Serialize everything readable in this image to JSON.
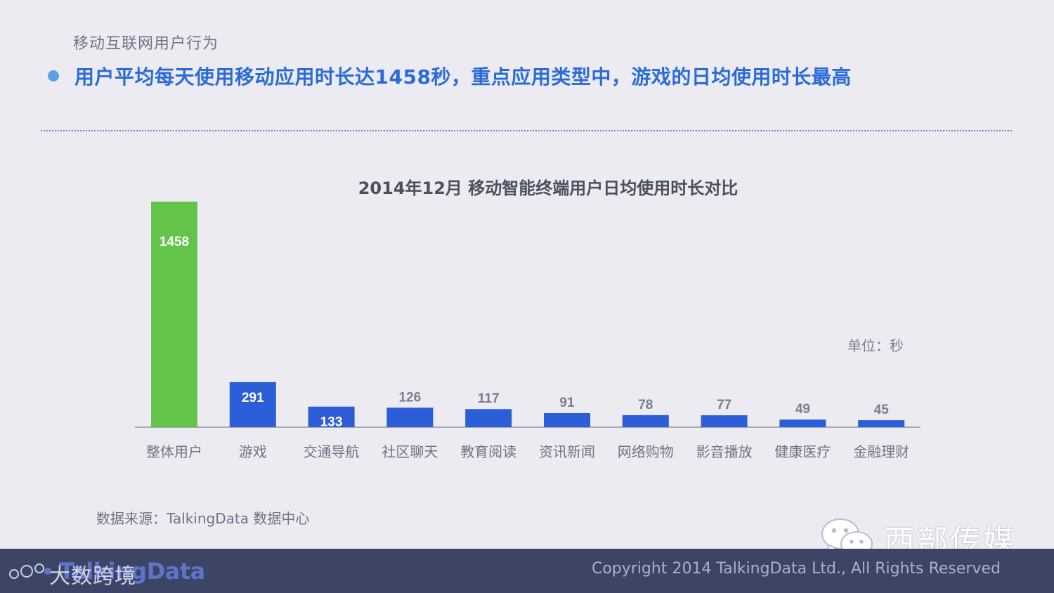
{
  "header": {
    "section_title": "移动互联网用户行为",
    "headline": "用户平均每天使用移动应用时长达1458秒，重点应用类型中，游戏的日均使用时长最高"
  },
  "chart_data": {
    "type": "bar",
    "title": "2014年12月 移动智能终端用户日均使用时长对比",
    "unit_label": "单位：秒",
    "categories": [
      "整体用户",
      "游戏",
      "交通导航",
      "社区聊天",
      "教育阅读",
      "资讯新闻",
      "网络购物",
      "影音播放",
      "健康医疗",
      "金融理财"
    ],
    "values": [
      1458,
      291,
      133,
      126,
      117,
      91,
      78,
      77,
      49,
      45
    ],
    "highlight_index": 0,
    "colors": {
      "highlight": "#62c449",
      "default": "#2c5ed8",
      "axis": "#a7aab8"
    },
    "ylim": [
      0,
      1458
    ],
    "grid": false,
    "legend": "none"
  },
  "source": "数据来源：TalkingData 数据中心",
  "watermark": {
    "icon": "wechat-icon",
    "text": "西部传媒"
  },
  "footer": {
    "logo_text": "TalkingData",
    "logo_overlay": "大数跨境",
    "copyright": "Copyright 2014 TalkingData Ltd., All Rights Reserved"
  }
}
